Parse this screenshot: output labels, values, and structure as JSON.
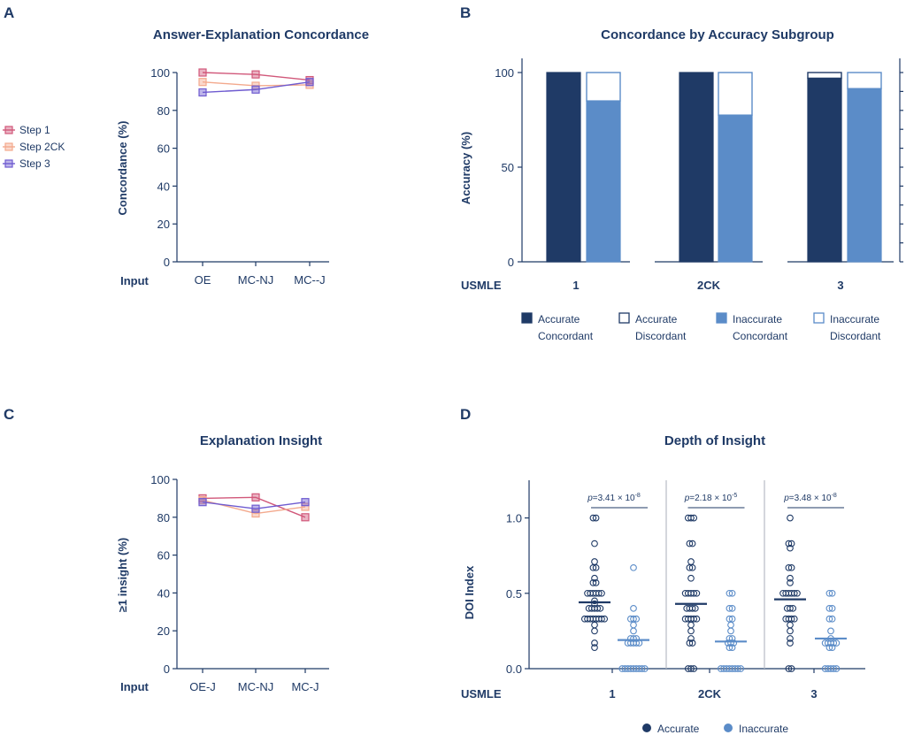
{
  "chart_data": [
    {
      "panel": "A",
      "type": "line",
      "title": "Answer-Explanation Concordance",
      "ylabel": "Concordance (%)",
      "xlabel": "Input",
      "categories": [
        "OE",
        "MC-NJ",
        "MC--J"
      ],
      "ylim": [
        0,
        100
      ],
      "yticks": [
        0,
        20,
        40,
        60,
        80,
        100
      ],
      "legend_position": "left",
      "series": [
        {
          "name": "Step 1",
          "color": "#d1587a",
          "values": [
            100,
            99,
            96
          ]
        },
        {
          "name": "Step 2CK",
          "color": "#f3a98d",
          "values": [
            95,
            93,
            93.5
          ]
        },
        {
          "name": "Step 3",
          "color": "#6e5bd0",
          "values": [
            89.5,
            91,
            95
          ]
        }
      ]
    },
    {
      "panel": "B",
      "type": "bar",
      "title": "Concordance by Accuracy Subgroup",
      "ylabel": "Accuracy (%)",
      "xlabel": "USMLE",
      "categories": [
        "1",
        "2CK",
        "3"
      ],
      "ylim": [
        0,
        100
      ],
      "yticks": [
        0,
        50,
        100
      ],
      "bars": [
        {
          "group": "1",
          "subgroup": "Accurate",
          "concordant": 100,
          "discordant": 0
        },
        {
          "group": "1",
          "subgroup": "Inaccurate",
          "concordant": 85,
          "discordant": 15
        },
        {
          "group": "2CK",
          "subgroup": "Accurate",
          "concordant": 100,
          "discordant": 0
        },
        {
          "group": "2CK",
          "subgroup": "Inaccurate",
          "concordant": 77.5,
          "discordant": 22.5
        },
        {
          "group": "3",
          "subgroup": "Accurate",
          "concordant": 97,
          "discordant": 3
        },
        {
          "group": "3",
          "subgroup": "Inaccurate",
          "concordant": 91.5,
          "discordant": 8.5
        }
      ],
      "legend": [
        {
          "line1": "Accurate",
          "line2": "Concordant",
          "fill": "#1f3a66",
          "stroke": "#1f3a66"
        },
        {
          "line1": "Accurate",
          "line2": "Discordant",
          "fill": "#ffffff",
          "stroke": "#1f3a66"
        },
        {
          "line1": "Inaccurate",
          "line2": "Concordant",
          "fill": "#5b8cc8",
          "stroke": "#5b8cc8"
        },
        {
          "line1": "Inaccurate",
          "line2": "Discordant",
          "fill": "#ffffff",
          "stroke": "#5b8cc8"
        }
      ],
      "legend_position": "bottom"
    },
    {
      "panel": "C",
      "type": "line",
      "title": "Explanation Insight",
      "ylabel": "≥1 insight (%)",
      "xlabel": "Input",
      "categories": [
        "OE-J",
        "MC-NJ",
        "MC-J"
      ],
      "ylim": [
        0,
        100
      ],
      "yticks": [
        0,
        20,
        40,
        60,
        80,
        100
      ],
      "series": [
        {
          "name": "Step 1",
          "color": "#d1587a",
          "values": [
            90,
            90.5,
            80
          ]
        },
        {
          "name": "Step 2CK",
          "color": "#f3a98d",
          "values": [
            89,
            82,
            85.5
          ]
        },
        {
          "name": "Step 3",
          "color": "#6e5bd0",
          "values": [
            88,
            84.5,
            88
          ]
        }
      ]
    },
    {
      "panel": "D",
      "type": "scatter",
      "title": "Depth of Insight",
      "ylabel": "DOI Index",
      "xlabel": "USMLE",
      "categories": [
        "1",
        "2CK",
        "3"
      ],
      "ylim": [
        0,
        1.25
      ],
      "yticks": [
        "0.0",
        "0.5",
        "1.0"
      ],
      "legend": [
        {
          "name": "Accurate",
          "color": "#1f3a66"
        },
        {
          "name": "Inaccurate",
          "color": "#5b8cc8"
        }
      ],
      "groups": [
        {
          "category": "1",
          "p_value": {
            "prefix": "=3.41 × 10",
            "exp": "-8"
          },
          "accurate_mean": 0.44,
          "inaccurate_mean": 0.19,
          "accurate_values": [
            1.0,
            1.0,
            0.83,
            0.71,
            0.67,
            0.67,
            0.6,
            0.57,
            0.57,
            0.5,
            0.5,
            0.5,
            0.5,
            0.5,
            0.5,
            0.45,
            0.43,
            0.4,
            0.4,
            0.4,
            0.4,
            0.4,
            0.33,
            0.33,
            0.33,
            0.33,
            0.33,
            0.33,
            0.33,
            0.33,
            0.29,
            0.25,
            0.17,
            0.14
          ],
          "inaccurate_values": [
            0.67,
            0.4,
            0.33,
            0.33,
            0.33,
            0.29,
            0.25,
            0.2,
            0.2,
            0.2,
            0.17,
            0.17,
            0.17,
            0.17,
            0.17,
            0.0,
            0.0,
            0.0,
            0.0,
            0.0,
            0.0,
            0.0,
            0.0,
            0.0
          ]
        },
        {
          "category": "2CK",
          "p_value": {
            "prefix": "=2.18 × 10",
            "exp": "-5"
          },
          "accurate_mean": 0.43,
          "inaccurate_mean": 0.18,
          "accurate_values": [
            1.0,
            1.0,
            1.0,
            0.83,
            0.83,
            0.71,
            0.67,
            0.67,
            0.6,
            0.5,
            0.5,
            0.5,
            0.5,
            0.5,
            0.4,
            0.4,
            0.4,
            0.4,
            0.33,
            0.33,
            0.33,
            0.33,
            0.33,
            0.29,
            0.25,
            0.2,
            0.17,
            0.17,
            0.0,
            0.0,
            0.0
          ],
          "inaccurate_values": [
            0.5,
            0.5,
            0.4,
            0.4,
            0.33,
            0.33,
            0.29,
            0.25,
            0.2,
            0.2,
            0.17,
            0.17,
            0.17,
            0.14,
            0.14,
            0.0,
            0.0,
            0.0,
            0.0,
            0.0,
            0.0,
            0.0,
            0.0
          ]
        },
        {
          "category": "3",
          "p_value": {
            "prefix": "=3.48 × 10",
            "exp": "-8"
          },
          "accurate_mean": 0.46,
          "inaccurate_mean": 0.2,
          "accurate_values": [
            1.0,
            0.83,
            0.83,
            0.8,
            0.67,
            0.67,
            0.6,
            0.57,
            0.5,
            0.5,
            0.5,
            0.5,
            0.5,
            0.5,
            0.4,
            0.4,
            0.4,
            0.33,
            0.33,
            0.33,
            0.33,
            0.29,
            0.25,
            0.2,
            0.17,
            0.0,
            0.0
          ],
          "inaccurate_values": [
            0.5,
            0.5,
            0.4,
            0.4,
            0.33,
            0.33,
            0.25,
            0.2,
            0.17,
            0.17,
            0.17,
            0.17,
            0.17,
            0.14,
            0.14,
            0.0,
            0.0,
            0.0,
            0.0,
            0.0
          ]
        }
      ]
    }
  ],
  "panel_labels": [
    "A",
    "B",
    "C",
    "D"
  ],
  "p_symbol": "p"
}
